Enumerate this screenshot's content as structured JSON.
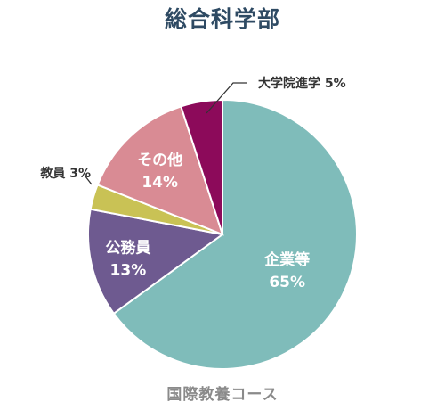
{
  "chart_data": {
    "type": "pie",
    "title": "総合科学部",
    "subtitle": "国際教養コース",
    "slices": [
      {
        "label": "企業等",
        "value": 65,
        "color": "#7fbcba"
      },
      {
        "label": "公務員",
        "value": 13,
        "color": "#6e5a90"
      },
      {
        "label": "教員",
        "value": 3,
        "color": "#c9c255"
      },
      {
        "label": "その他",
        "value": 14,
        "color": "#d98b94"
      },
      {
        "label": "大学院進学",
        "value": 5,
        "color": "#8c0a5a"
      }
    ]
  }
}
